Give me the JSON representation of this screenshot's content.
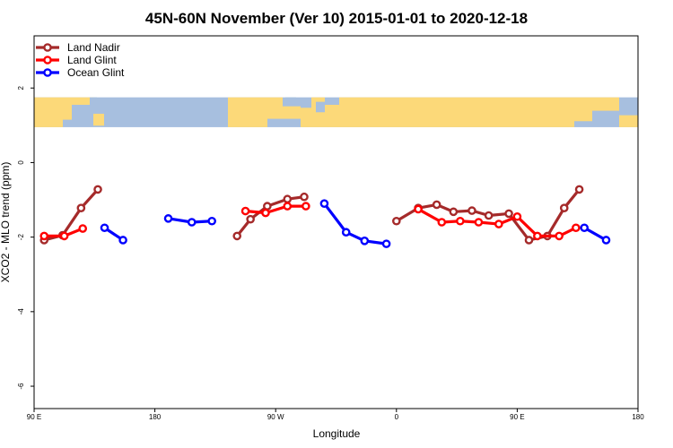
{
  "chart_data": {
    "type": "line",
    "title": "45N-60N November (Ver 10)   2015-01-01 to 2020-12-18",
    "xlabel": "Longitude",
    "ylabel": "XCO2 - MLO trend (ppm)",
    "xlim": [
      90,
      450
    ],
    "ylim": [
      -6.6,
      3.4
    ],
    "xticks": [
      90,
      162,
      234,
      306,
      378,
      450
    ],
    "xtick_labels": [
      "90 E",
      "180",
      "90 W",
      "0",
      "90 E",
      "180"
    ],
    "yticks": [
      -6,
      -4,
      -2,
      0,
      2
    ],
    "ytick_labels": [
      "-6",
      "-4",
      "-2",
      "0",
      "2"
    ],
    "grid": false,
    "legend_position": "top-left",
    "map_band": {
      "ymin": 0.95,
      "ymax": 1.75,
      "ocean_color": "#a7bfdf",
      "land_color": "#fcd979"
    },
    "series": [
      {
        "name": "Land Nadir",
        "color": "#a52a2a",
        "segments": [
          [
            [
              96,
              -2.08
            ],
            [
              107,
              -1.95
            ],
            [
              118,
              -1.22
            ],
            [
              128,
              -0.72
            ]
          ],
          [
            [
              211,
              -1.97
            ],
            [
              219,
              -1.52
            ],
            [
              229,
              -1.17
            ],
            [
              241,
              -0.98
            ],
            [
              251,
              -0.92
            ]
          ],
          [
            [
              306,
              -1.57
            ],
            [
              319,
              -1.22
            ],
            [
              330,
              -1.13
            ],
            [
              340,
              -1.32
            ],
            [
              351,
              -1.29
            ],
            [
              361,
              -1.42
            ],
            [
              373,
              -1.37
            ],
            [
              385,
              -2.08
            ],
            [
              396,
              -1.97
            ],
            [
              406,
              -1.22
            ],
            [
              415,
              -0.72
            ]
          ]
        ]
      },
      {
        "name": "Land Glint",
        "color": "#ff0000",
        "segments": [
          [
            [
              96,
              -1.97
            ],
            [
              108,
              -1.97
            ],
            [
              119,
              -1.77
            ]
          ],
          [
            [
              216,
              -1.3
            ],
            [
              228,
              -1.35
            ],
            [
              241,
              -1.17
            ],
            [
              252,
              -1.17
            ]
          ],
          [
            [
              319,
              -1.25
            ],
            [
              333,
              -1.6
            ],
            [
              344,
              -1.57
            ],
            [
              355,
              -1.6
            ],
            [
              367,
              -1.65
            ],
            [
              378,
              -1.45
            ],
            [
              390,
              -1.97
            ],
            [
              403,
              -1.97
            ],
            [
              413,
              -1.75
            ]
          ]
        ]
      },
      {
        "name": "Ocean Glint",
        "color": "#0000ff",
        "segments": [
          [
            [
              132,
              -1.75
            ],
            [
              143,
              -2.08
            ]
          ],
          [
            [
              170,
              -1.5
            ],
            [
              184,
              -1.6
            ],
            [
              196,
              -1.57
            ]
          ],
          [
            [
              263,
              -1.1
            ],
            [
              276,
              -1.87
            ],
            [
              287,
              -2.1
            ],
            [
              300,
              -2.18
            ]
          ],
          [
            [
              418,
              -1.75
            ],
            [
              431,
              -2.08
            ]
          ]
        ]
      }
    ]
  }
}
